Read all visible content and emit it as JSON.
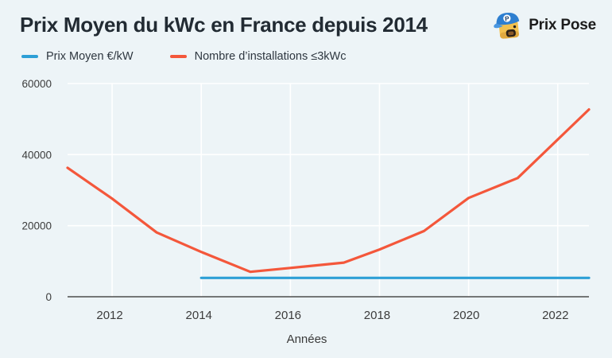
{
  "header": {
    "title": "Prix Moyen du kWc en France depuis 2014",
    "brand": "Prix Pose"
  },
  "legend": [
    {
      "label": "Prix Moyen €/kW",
      "color": "#2d9fd6"
    },
    {
      "label": "Nombre d’installations ≤3kWc",
      "color": "#f4573b"
    }
  ],
  "colors": {
    "background": "#edf4f7",
    "gridline": "#ffffff",
    "axis_line": "#4d4d4d",
    "title_text": "#222b33",
    "tick_text": "#3c3c3c"
  },
  "chart_data": {
    "type": "line",
    "title": "Prix Moyen du kWc en France depuis 2014",
    "xlabel": "Années",
    "ylabel": "",
    "xlim": [
      2011,
      2022.7
    ],
    "ylim": [
      0,
      60000
    ],
    "x_ticks": [
      2012,
      2014,
      2016,
      2018,
      2020,
      2022
    ],
    "y_ticks": [
      0,
      20000,
      40000,
      60000
    ],
    "grid": true,
    "legend_position": "top-left",
    "series": [
      {
        "name": "Prix Moyen €/kW",
        "color": "#2d9fd6",
        "points": [
          {
            "x": 2014,
            "y": 5300
          },
          {
            "x": 2022.7,
            "y": 5300
          }
        ]
      },
      {
        "name": "Nombre d’installations ≤3kWc",
        "color": "#f4573b",
        "points": [
          {
            "x": 2011,
            "y": 36300
          },
          {
            "x": 2012,
            "y": 27600
          },
          {
            "x": 2013,
            "y": 18100
          },
          {
            "x": 2014,
            "y": 12600
          },
          {
            "x": 2015.1,
            "y": 7000
          },
          {
            "x": 2016,
            "y": 8100
          },
          {
            "x": 2017.2,
            "y": 9600
          },
          {
            "x": 2018,
            "y": 13300
          },
          {
            "x": 2019,
            "y": 18500
          },
          {
            "x": 2020,
            "y": 27800
          },
          {
            "x": 2021.1,
            "y": 33400
          },
          {
            "x": 2022.7,
            "y": 52700
          }
        ]
      }
    ]
  }
}
